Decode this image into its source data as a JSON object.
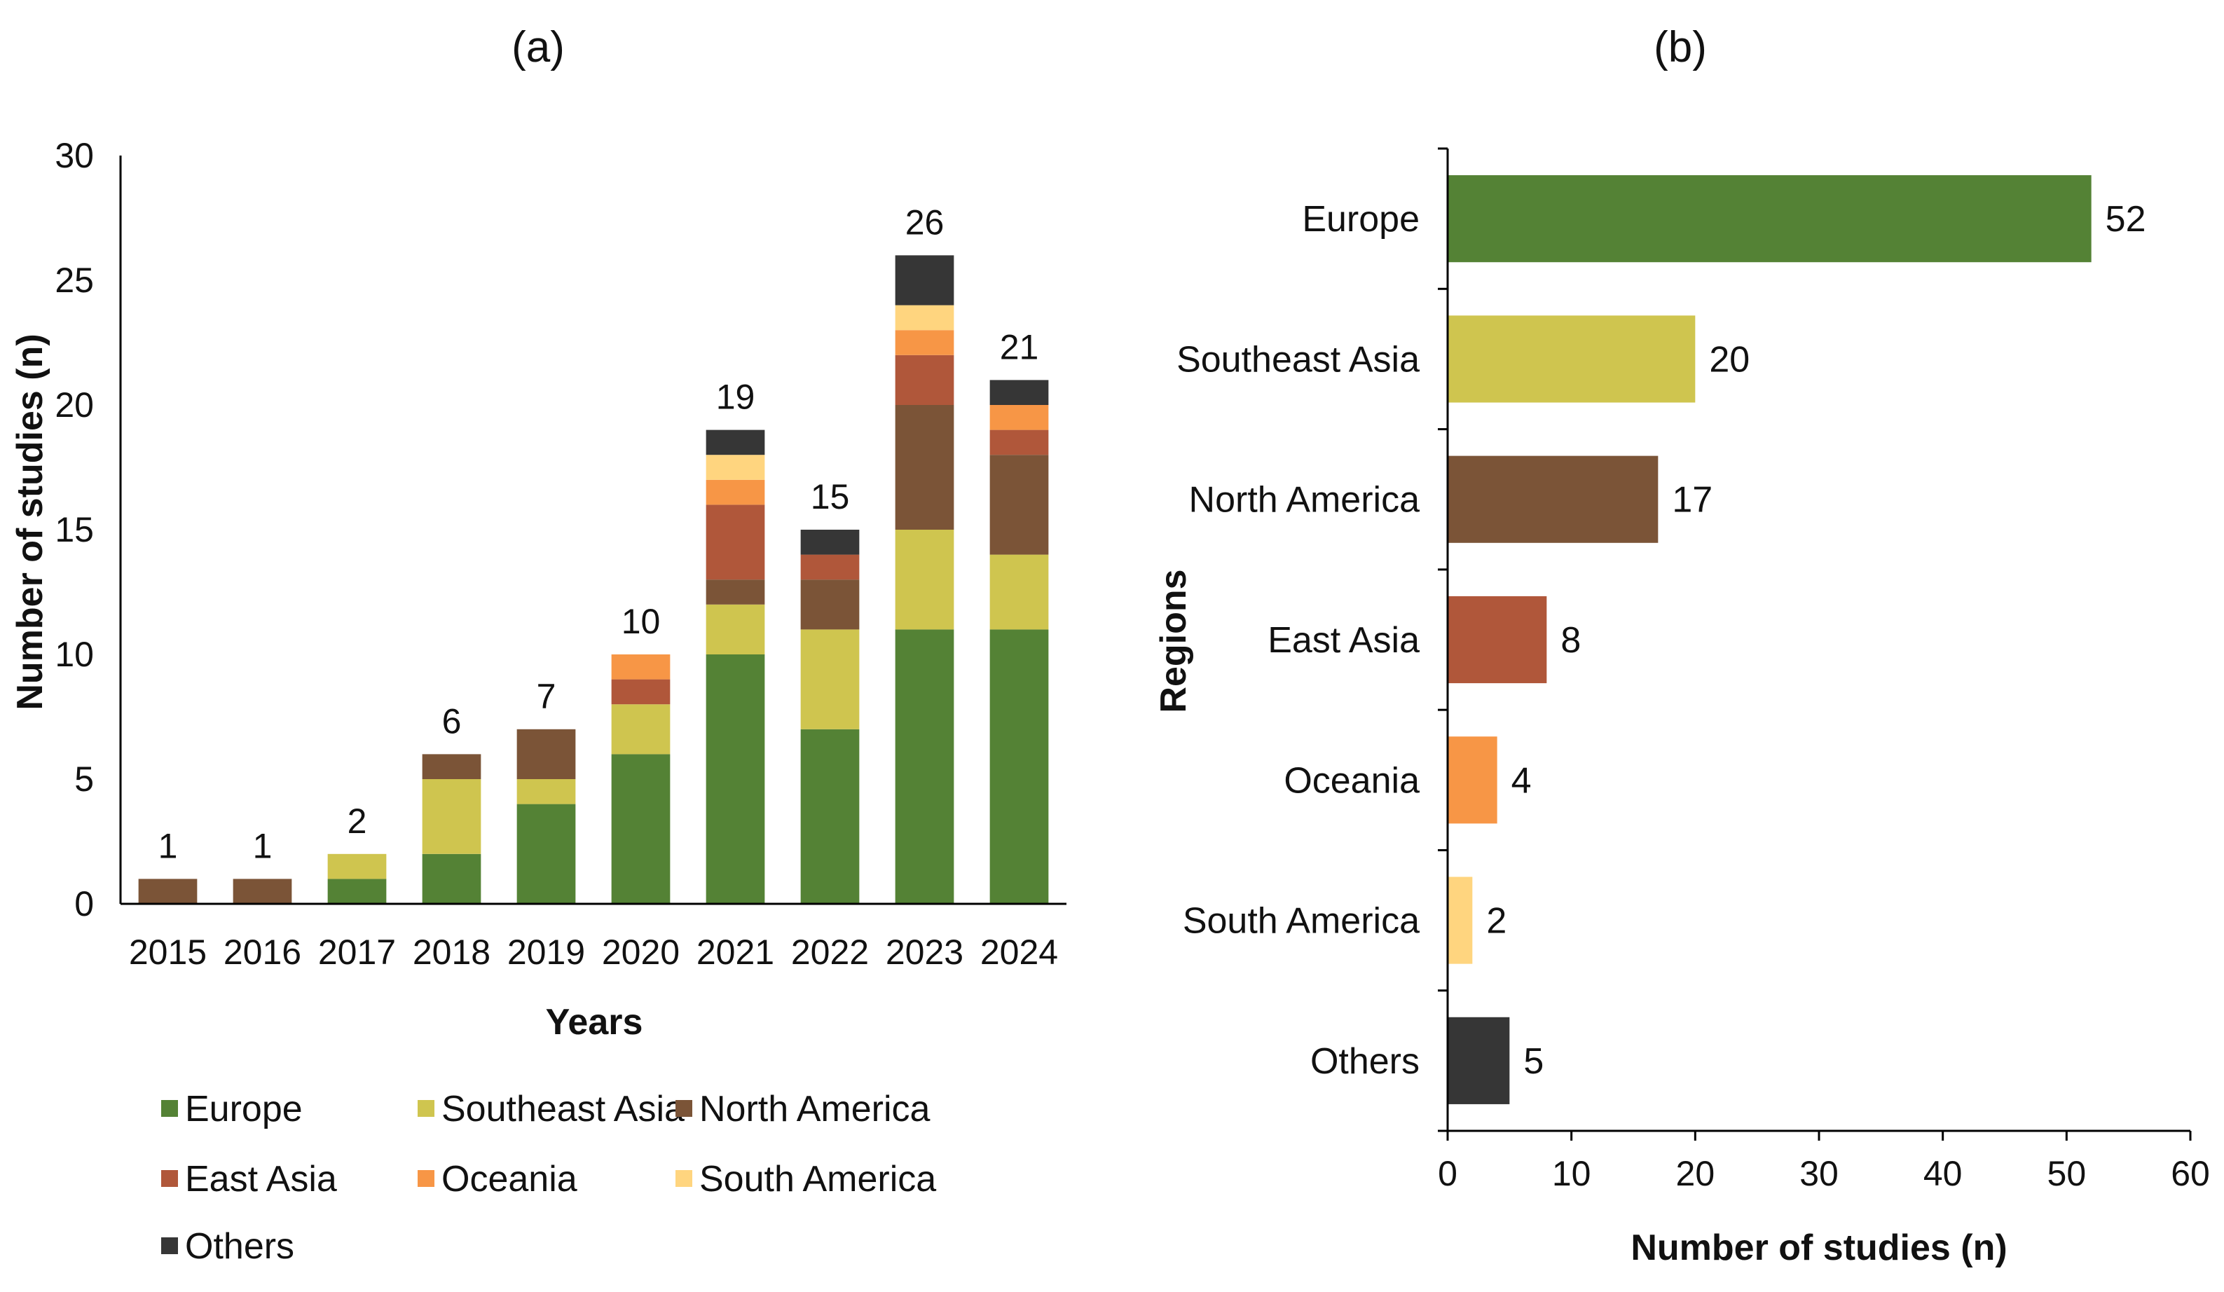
{
  "chart_data": [
    {
      "type": "bar",
      "stacked": true,
      "panel_label": "(a)",
      "categories": [
        "2015",
        "2016",
        "2017",
        "2018",
        "2019",
        "2020",
        "2021",
        "2022",
        "2023",
        "2024"
      ],
      "series": [
        {
          "name": "Europe",
          "color": "#548235",
          "values": [
            0,
            0,
            1,
            2,
            4,
            6,
            10,
            7,
            11,
            11
          ]
        },
        {
          "name": "Southeast Asia",
          "color": "#CFC54F",
          "values": [
            0,
            0,
            1,
            3,
            1,
            2,
            2,
            4,
            4,
            3
          ]
        },
        {
          "name": "North America",
          "color": "#7B5437",
          "values": [
            1,
            1,
            0,
            1,
            2,
            0,
            1,
            2,
            5,
            4
          ]
        },
        {
          "name": "East Asia",
          "color": "#B0573A",
          "values": [
            0,
            0,
            0,
            0,
            0,
            1,
            3,
            1,
            2,
            1
          ]
        },
        {
          "name": "Oceania",
          "color": "#F79646",
          "values": [
            0,
            0,
            0,
            0,
            0,
            1,
            1,
            0,
            1,
            1
          ]
        },
        {
          "name": "South America",
          "color": "#FFD57F",
          "values": [
            0,
            0,
            0,
            0,
            0,
            0,
            1,
            0,
            1,
            0
          ]
        },
        {
          "name": "Others",
          "color": "#363636",
          "values": [
            0,
            0,
            0,
            0,
            0,
            0,
            1,
            1,
            2,
            1
          ]
        }
      ],
      "totals": [
        "1",
        "1",
        "2",
        "6",
        "7",
        "10",
        "19",
        "15",
        "26",
        "21"
      ],
      "yticks": [
        "0",
        "5",
        "10",
        "15",
        "20",
        "25",
        "30"
      ],
      "ylim": [
        0,
        30
      ],
      "xlabel": "Years",
      "ylabel": "Number of studies (n)",
      "legend_position": "bottom"
    },
    {
      "type": "bar",
      "orientation": "horizontal",
      "panel_label": "(b)",
      "categories": [
        "Europe",
        "Southeast Asia",
        "North America",
        "East Asia",
        "Oceania",
        "South America",
        "Others"
      ],
      "values": [
        52,
        20,
        17,
        8,
        4,
        2,
        5
      ],
      "value_labels": [
        "52",
        "20",
        "17",
        "8",
        "4",
        "2",
        "5"
      ],
      "colors": [
        "#548235",
        "#CFC54F",
        "#7B5437",
        "#B0573A",
        "#F79646",
        "#FFD57F",
        "#363636"
      ],
      "xticks": [
        "0",
        "10",
        "20",
        "30",
        "40",
        "50",
        "60"
      ],
      "xlim": [
        0,
        60
      ],
      "xlabel": "Number of studies (n)",
      "ylabel": "Regions"
    }
  ]
}
